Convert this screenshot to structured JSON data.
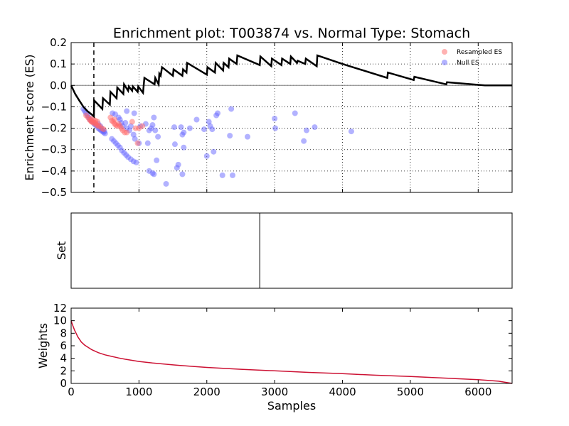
{
  "title": "Enrichment plot: T003874 vs. Normal Type: Stomach",
  "colors": {
    "es_line": "#000000",
    "resampled": "#ff6666",
    "null": "#6666ff",
    "weights_line": "#cc1133",
    "zero_line": "#808080"
  },
  "legend": {
    "placement": "top-right",
    "resampled_label": "Resampled ES",
    "null_label": "Null ES"
  },
  "chart_data": [
    {
      "type": "line",
      "name": "enrichment-panel",
      "ylabel": "Enrichment score (ES)",
      "xlim": [
        0,
        6500
      ],
      "ylim": [
        -0.5,
        0.2
      ],
      "xticks": [
        0,
        1000,
        2000,
        3000,
        4000,
        5000,
        6000
      ],
      "yticks": [
        -0.5,
        -0.4,
        -0.3,
        -0.2,
        -0.1,
        0.0,
        0.1,
        0.2
      ],
      "ytick_labels": [
        "−0.5",
        "−0.4",
        "−0.3",
        "−0.2",
        "−0.1",
        "0.0",
        "0.1",
        "0.2"
      ],
      "grid": true,
      "zero_line": 0.0,
      "leading_edge_x": 335,
      "es_curve": [
        [
          0,
          0.0
        ],
        [
          60,
          -0.04
        ],
        [
          120,
          -0.07
        ],
        [
          180,
          -0.1
        ],
        [
          240,
          -0.12
        ],
        [
          300,
          -0.135
        ],
        [
          335,
          -0.145
        ],
        [
          340,
          -0.07
        ],
        [
          460,
          -0.11
        ],
        [
          470,
          -0.06
        ],
        [
          570,
          -0.09
        ],
        [
          580,
          -0.03
        ],
        [
          670,
          -0.06
        ],
        [
          680,
          -0.01
        ],
        [
          770,
          -0.04
        ],
        [
          780,
          0.005
        ],
        [
          840,
          -0.025
        ],
        [
          850,
          -0.005
        ],
        [
          900,
          -0.025
        ],
        [
          910,
          -0.005
        ],
        [
          980,
          -0.03
        ],
        [
          990,
          -0.005
        ],
        [
          1060,
          -0.035
        ],
        [
          1080,
          0.035
        ],
        [
          1230,
          0.005
        ],
        [
          1240,
          0.035
        ],
        [
          1290,
          0.005
        ],
        [
          1300,
          0.055
        ],
        [
          1320,
          0.045
        ],
        [
          1340,
          0.085
        ],
        [
          1500,
          0.045
        ],
        [
          1510,
          0.075
        ],
        [
          1640,
          0.045
        ],
        [
          1650,
          0.075
        ],
        [
          1700,
          0.06
        ],
        [
          1710,
          0.105
        ],
        [
          2000,
          0.05
        ],
        [
          2010,
          0.085
        ],
        [
          2120,
          0.06
        ],
        [
          2130,
          0.105
        ],
        [
          2240,
          0.07
        ],
        [
          2250,
          0.105
        ],
        [
          2320,
          0.085
        ],
        [
          2330,
          0.125
        ],
        [
          2440,
          0.1
        ],
        [
          2450,
          0.14
        ],
        [
          2780,
          0.095
        ],
        [
          2790,
          0.135
        ],
        [
          2950,
          0.09
        ],
        [
          2960,
          0.125
        ],
        [
          3100,
          0.095
        ],
        [
          3110,
          0.125
        ],
        [
          3230,
          0.1
        ],
        [
          3240,
          0.135
        ],
        [
          3330,
          0.105
        ],
        [
          3340,
          0.115
        ],
        [
          3450,
          0.1
        ],
        [
          3460,
          0.125
        ],
        [
          3620,
          0.09
        ],
        [
          3630,
          0.14
        ],
        [
          4000,
          0.1
        ],
        [
          4660,
          0.035
        ],
        [
          4670,
          0.06
        ],
        [
          5050,
          0.025
        ],
        [
          5060,
          0.04
        ],
        [
          5530,
          0.005
        ],
        [
          5540,
          0.015
        ],
        [
          6100,
          0.0
        ],
        [
          6500,
          0.0
        ]
      ],
      "resampled_es": [
        [
          220,
          -0.14
        ],
        [
          250,
          -0.15
        ],
        [
          270,
          -0.16
        ],
        [
          290,
          -0.165
        ],
        [
          300,
          -0.17
        ],
        [
          310,
          -0.17
        ],
        [
          330,
          -0.175
        ],
        [
          350,
          -0.175
        ],
        [
          360,
          -0.18
        ],
        [
          380,
          -0.185
        ],
        [
          400,
          -0.19
        ],
        [
          420,
          -0.19
        ],
        [
          450,
          -0.2
        ],
        [
          480,
          -0.205
        ],
        [
          300,
          -0.155
        ],
        [
          330,
          -0.16
        ],
        [
          360,
          -0.165
        ],
        [
          390,
          -0.17
        ],
        [
          580,
          -0.15
        ],
        [
          600,
          -0.165
        ],
        [
          620,
          -0.17
        ],
        [
          640,
          -0.16
        ],
        [
          660,
          -0.185
        ],
        [
          680,
          -0.19
        ],
        [
          700,
          -0.18
        ],
        [
          720,
          -0.19
        ],
        [
          740,
          -0.2
        ],
        [
          760,
          -0.21
        ],
        [
          790,
          -0.22
        ],
        [
          820,
          -0.22
        ],
        [
          900,
          -0.17
        ],
        [
          950,
          -0.2
        ],
        [
          1000,
          -0.2
        ],
        [
          980,
          -0.27
        ],
        [
          1050,
          -0.19
        ],
        [
          640,
          -0.18
        ]
      ],
      "null_es": [
        [
          180,
          -0.11
        ],
        [
          200,
          -0.12
        ],
        [
          220,
          -0.13
        ],
        [
          240,
          -0.14
        ],
        [
          260,
          -0.15
        ],
        [
          280,
          -0.16
        ],
        [
          300,
          -0.165
        ],
        [
          320,
          -0.17
        ],
        [
          340,
          -0.18
        ],
        [
          360,
          -0.185
        ],
        [
          380,
          -0.19
        ],
        [
          400,
          -0.2
        ],
        [
          420,
          -0.205
        ],
        [
          440,
          -0.21
        ],
        [
          460,
          -0.215
        ],
        [
          480,
          -0.22
        ],
        [
          500,
          -0.225
        ],
        [
          400,
          -0.18
        ],
        [
          430,
          -0.19
        ],
        [
          450,
          -0.2
        ],
        [
          470,
          -0.21
        ],
        [
          490,
          -0.215
        ],
        [
          600,
          -0.25
        ],
        [
          630,
          -0.26
        ],
        [
          660,
          -0.27
        ],
        [
          690,
          -0.28
        ],
        [
          720,
          -0.29
        ],
        [
          750,
          -0.305
        ],
        [
          780,
          -0.315
        ],
        [
          810,
          -0.325
        ],
        [
          840,
          -0.335
        ],
        [
          880,
          -0.345
        ],
        [
          920,
          -0.355
        ],
        [
          960,
          -0.36
        ],
        [
          610,
          -0.13
        ],
        [
          650,
          -0.135
        ],
        [
          700,
          -0.15
        ],
        [
          720,
          -0.16
        ],
        [
          740,
          -0.175
        ],
        [
          760,
          -0.19
        ],
        [
          800,
          -0.175
        ],
        [
          820,
          -0.2
        ],
        [
          860,
          -0.21
        ],
        [
          880,
          -0.19
        ],
        [
          920,
          -0.23
        ],
        [
          940,
          -0.25
        ],
        [
          1000,
          -0.27
        ],
        [
          1020,
          -0.19
        ],
        [
          1100,
          -0.18
        ],
        [
          1150,
          -0.21
        ],
        [
          1180,
          -0.2
        ],
        [
          1200,
          -0.185
        ],
        [
          1220,
          -0.15
        ],
        [
          1240,
          -0.21
        ],
        [
          1260,
          -0.35
        ],
        [
          1280,
          -0.24
        ],
        [
          1130,
          -0.27
        ],
        [
          1150,
          -0.4
        ],
        [
          1200,
          -0.41
        ],
        [
          1220,
          -0.415
        ],
        [
          1400,
          -0.46
        ],
        [
          1520,
          -0.195
        ],
        [
          1530,
          -0.275
        ],
        [
          1560,
          -0.385
        ],
        [
          1580,
          -0.37
        ],
        [
          1620,
          -0.195
        ],
        [
          1640,
          -0.23
        ],
        [
          1660,
          -0.22
        ],
        [
          1640,
          -0.415
        ],
        [
          1660,
          -0.29
        ],
        [
          820,
          -0.12
        ],
        [
          930,
          -0.13
        ],
        [
          1960,
          -0.205
        ],
        [
          2000,
          -0.33
        ],
        [
          2030,
          -0.17
        ],
        [
          2050,
          -0.19
        ],
        [
          2100,
          -0.31
        ],
        [
          2140,
          -0.14
        ],
        [
          2160,
          -0.13
        ],
        [
          2230,
          -0.42
        ],
        [
          2340,
          -0.235
        ],
        [
          2360,
          -0.11
        ],
        [
          2380,
          -0.42
        ],
        [
          2600,
          -0.24
        ],
        [
          3000,
          -0.155
        ],
        [
          3010,
          -0.2
        ],
        [
          3300,
          -0.13
        ],
        [
          3430,
          -0.26
        ],
        [
          3470,
          -0.21
        ],
        [
          3590,
          -0.195
        ],
        [
          4130,
          -0.215
        ],
        [
          1750,
          -0.2
        ],
        [
          1850,
          -0.16
        ],
        [
          2080,
          -0.205
        ]
      ]
    },
    {
      "type": "line",
      "name": "set-panel",
      "ylabel": "Set",
      "xlim": [
        0,
        6500
      ],
      "hit_positions": [
        2780
      ]
    },
    {
      "type": "line",
      "name": "weights-panel",
      "xlabel": "Samples",
      "ylabel": "Weights",
      "xlim": [
        0,
        6500
      ],
      "ylim": [
        0,
        12
      ],
      "xticks": [
        0,
        1000,
        2000,
        3000,
        4000,
        5000,
        6000
      ],
      "xtick_labels": [
        "0",
        "1000",
        "2000",
        "3000",
        "4000",
        "5000",
        "6000"
      ],
      "yticks": [
        0,
        2,
        4,
        6,
        8,
        10,
        12
      ],
      "ytick_labels": [
        "0",
        "2",
        "4",
        "6",
        "8",
        "10",
        "12"
      ],
      "weights_curve": [
        [
          0,
          10.0
        ],
        [
          25,
          9.2
        ],
        [
          50,
          8.5
        ],
        [
          100,
          7.4
        ],
        [
          150,
          6.6
        ],
        [
          200,
          6.1
        ],
        [
          300,
          5.4
        ],
        [
          400,
          4.9
        ],
        [
          500,
          4.55
        ],
        [
          600,
          4.3
        ],
        [
          700,
          4.05
        ],
        [
          800,
          3.85
        ],
        [
          1000,
          3.5
        ],
        [
          1200,
          3.25
        ],
        [
          1500,
          2.95
        ],
        [
          1800,
          2.7
        ],
        [
          2000,
          2.55
        ],
        [
          2500,
          2.25
        ],
        [
          3000,
          2.0
        ],
        [
          3500,
          1.75
        ],
        [
          4000,
          1.55
        ],
        [
          4500,
          1.3
        ],
        [
          5000,
          1.1
        ],
        [
          5500,
          0.85
        ],
        [
          6000,
          0.6
        ],
        [
          6300,
          0.35
        ],
        [
          6500,
          0.0
        ]
      ]
    }
  ]
}
